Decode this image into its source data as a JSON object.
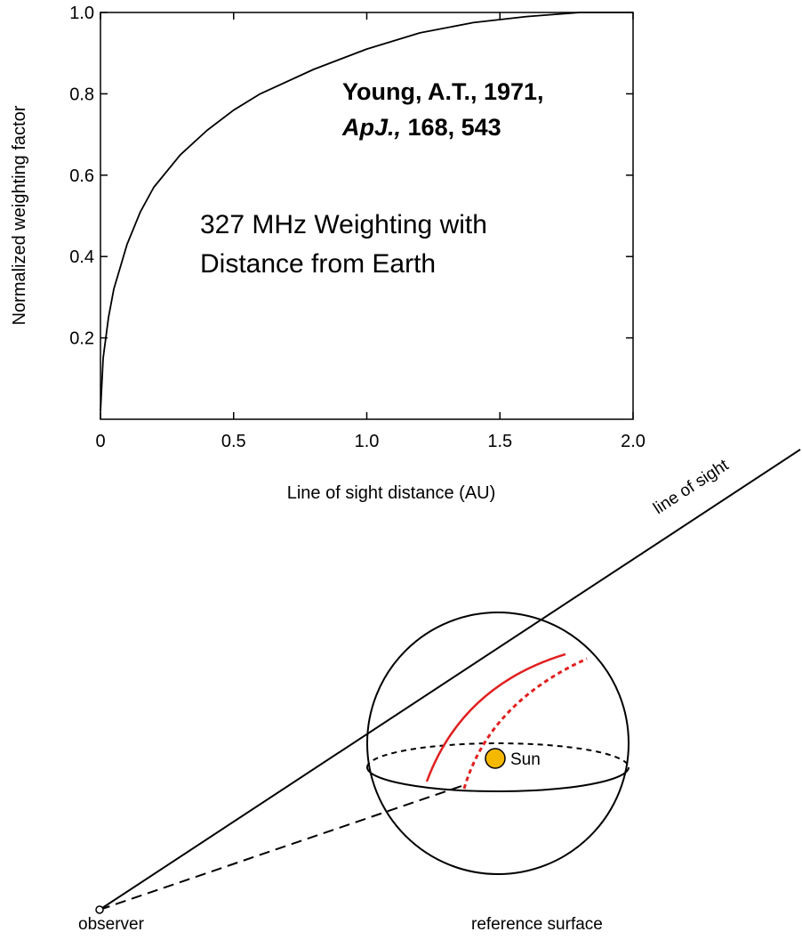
{
  "chart_data": {
    "type": "line",
    "x_label": "Line of sight  distance (AU)",
    "y_label": "Normalized weighting factor",
    "annotations": [
      "Young, A.T., 1971,",
      "ApJ.,",
      "168, 543",
      "327 MHz Weighting with",
      "Distance from Earth"
    ],
    "x": [
      0,
      0.01,
      0.03,
      0.05,
      0.1,
      0.15,
      0.2,
      0.3,
      0.4,
      0.5,
      0.6,
      0.8,
      1.0,
      1.2,
      1.4,
      1.6,
      1.8,
      2.0
    ],
    "values": [
      0.02,
      0.15,
      0.25,
      0.32,
      0.43,
      0.51,
      0.57,
      0.65,
      0.71,
      0.76,
      0.8,
      0.86,
      0.91,
      0.95,
      0.975,
      0.99,
      1.0,
      1.0
    ],
    "color": "#000000",
    "xlim": [
      0,
      2
    ],
    "ylim": [
      0,
      1
    ],
    "xticks": [
      0,
      0.5,
      {
        "value": 1,
        "label": "1.0"
      },
      1.5,
      {
        "value": 2,
        "label": "2.0"
      }
    ],
    "yticks": [
      0.2,
      0.4,
      0.6,
      0.8,
      {
        "value": 1,
        "label": "1.0"
      }
    ]
  },
  "diagram": {
    "line_of_sight": "line of sight",
    "sun": "Sun",
    "observer": "observer",
    "reference_surface": "reference surface"
  }
}
